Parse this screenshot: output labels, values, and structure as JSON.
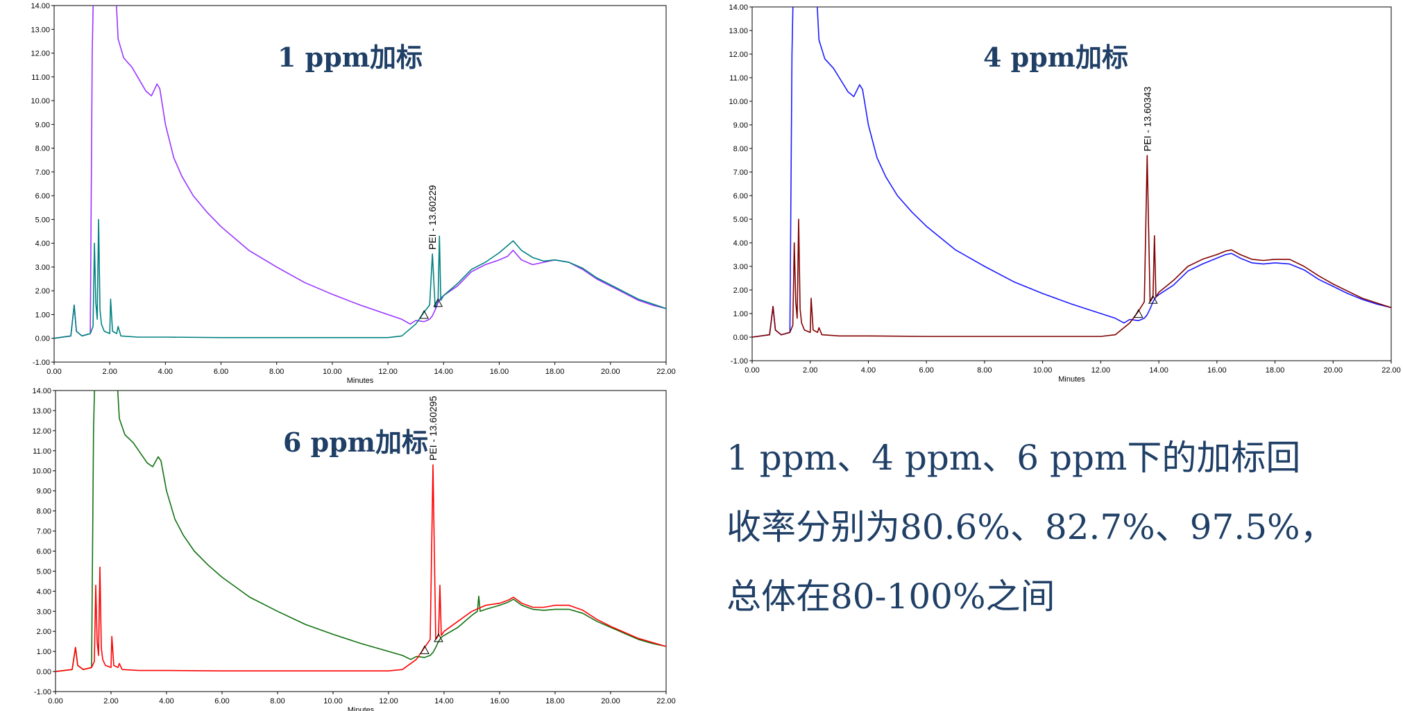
{
  "chart_data": [
    {
      "type": "line",
      "title": "1 ppm加标",
      "xlabel": "Minutes",
      "ylabel": "",
      "xlim": [
        0,
        22
      ],
      "ylim": [
        -1,
        14
      ],
      "x_ticks": [
        "0.00",
        "2.00",
        "4.00",
        "6.00",
        "8.00",
        "10.00",
        "12.00",
        "14.00",
        "16.00",
        "18.00",
        "20.00",
        "22.00"
      ],
      "y_ticks": [
        "-1.00",
        "0.00",
        "1.00",
        "2.00",
        "3.00",
        "4.00",
        "5.00",
        "6.00",
        "7.00",
        "8.00",
        "9.00",
        "10.00",
        "11.00",
        "12.00",
        "13.00",
        "14.00"
      ],
      "grid": false,
      "peak_label": "PEI - 13.60229",
      "series": [
        {
          "color": "#9933ff",
          "x": [
            0,
            0.6,
            0.72,
            0.8,
            1.0,
            1.3,
            1.37,
            1.42,
            2.2,
            2.3,
            2.35,
            2.4,
            2.5,
            2.8,
            3.0,
            3.3,
            3.5,
            3.7,
            3.8,
            4.0,
            4.3,
            4.6,
            5.0,
            5.5,
            6.0,
            7.0,
            8.0,
            9.0,
            10.0,
            11.0,
            12.0,
            12.5,
            12.8,
            13.0,
            13.3,
            13.5,
            13.6,
            13.7,
            13.8,
            13.85,
            13.9,
            14.0,
            14.5,
            15.0,
            15.5,
            16.0,
            16.3,
            16.5,
            16.8,
            17.2,
            17.6,
            18.0,
            18.5,
            19.0,
            19.5,
            20.0,
            20.5,
            21.0,
            21.5,
            22.0
          ],
          "y": [
            0.0,
            0.1,
            1.4,
            0.3,
            0.1,
            0.2,
            12,
            15,
            15,
            12.6,
            12.4,
            12.2,
            11.8,
            11.4,
            11.0,
            10.4,
            10.2,
            10.7,
            10.5,
            9.0,
            7.6,
            6.8,
            6.0,
            5.3,
            4.7,
            3.7,
            3.0,
            2.35,
            1.85,
            1.4,
            1.0,
            0.8,
            0.6,
            0.75,
            0.7,
            0.8,
            0.95,
            1.2,
            1.5,
            1.6,
            1.7,
            1.8,
            2.2,
            2.8,
            3.1,
            3.3,
            3.45,
            3.7,
            3.3,
            3.1,
            3.2,
            3.3,
            3.2,
            2.9,
            2.5,
            2.2,
            1.9,
            1.6,
            1.4,
            1.25
          ]
        },
        {
          "color": "#008080",
          "x": [
            0,
            0.6,
            0.72,
            0.8,
            1.0,
            1.3,
            1.4,
            1.45,
            1.5,
            1.55,
            1.6,
            1.65,
            1.7,
            1.8,
            2.0,
            2.03,
            2.1,
            2.25,
            2.3,
            2.4,
            3,
            4,
            6,
            8,
            10,
            12,
            12.5,
            13.0,
            13.3,
            13.5,
            13.6,
            13.7,
            13.8,
            13.85,
            13.9,
            14.0,
            14.5,
            15,
            15.5,
            16,
            16.3,
            16.5,
            16.8,
            17.2,
            17.6,
            18,
            18.5,
            19,
            19.5,
            20,
            20.5,
            21,
            21.5,
            22
          ],
          "y": [
            0,
            0.1,
            1.4,
            0.3,
            0.1,
            0.2,
            0.5,
            4.0,
            1.5,
            0.8,
            5.0,
            1.2,
            0.6,
            0.3,
            0.2,
            1.65,
            0.3,
            0.2,
            0.5,
            0.1,
            0.05,
            0.05,
            0.03,
            0.03,
            0.03,
            0.03,
            0.1,
            0.6,
            1.1,
            1.4,
            3.55,
            1.3,
            1.6,
            4.3,
            1.6,
            1.8,
            2.3,
            2.9,
            3.2,
            3.6,
            3.9,
            4.1,
            3.7,
            3.4,
            3.25,
            3.3,
            3.2,
            2.95,
            2.55,
            2.25,
            1.95,
            1.65,
            1.45,
            1.25
          ]
        }
      ]
    },
    {
      "type": "line",
      "title": "4 ppm加标",
      "xlabel": "Minutes",
      "ylabel": "",
      "xlim": [
        0,
        22
      ],
      "ylim": [
        -1,
        14
      ],
      "x_ticks": [
        "0.00",
        "2.00",
        "4.00",
        "6.00",
        "8.00",
        "10.00",
        "12.00",
        "14.00",
        "16.00",
        "18.00",
        "20.00",
        "22.00"
      ],
      "y_ticks": [
        "-1.00",
        "0.00",
        "1.00",
        "2.00",
        "3.00",
        "4.00",
        "5.00",
        "6.00",
        "7.00",
        "8.00",
        "9.00",
        "10.00",
        "11.00",
        "12.00",
        "13.00",
        "14.00"
      ],
      "grid": false,
      "peak_label": "PEI - 13.60343",
      "series": [
        {
          "color": "#1a1aff",
          "x": [
            0,
            0.6,
            0.72,
            0.8,
            1.0,
            1.3,
            1.37,
            1.42,
            2.2,
            2.3,
            2.35,
            2.4,
            2.5,
            2.8,
            3.0,
            3.3,
            3.5,
            3.7,
            3.8,
            4.0,
            4.3,
            4.6,
            5.0,
            5.5,
            6.0,
            7.0,
            8.0,
            9.0,
            10.0,
            11.0,
            12.0,
            12.5,
            12.8,
            13.0,
            13.3,
            13.5,
            13.6,
            13.7,
            13.8,
            13.85,
            13.9,
            14.0,
            14.5,
            15.0,
            15.5,
            16.0,
            16.3,
            16.5,
            16.8,
            17.2,
            17.6,
            18.0,
            18.5,
            19.0,
            19.5,
            20.0,
            20.5,
            21.0,
            21.5,
            22.0
          ],
          "y": [
            0,
            0.1,
            1.3,
            0.3,
            0.1,
            0.2,
            12,
            15,
            15,
            12.6,
            12.4,
            12.2,
            11.8,
            11.4,
            11.0,
            10.4,
            10.2,
            10.7,
            10.5,
            9.0,
            7.6,
            6.8,
            6.0,
            5.3,
            4.7,
            3.7,
            3.0,
            2.35,
            1.85,
            1.4,
            1.0,
            0.8,
            0.6,
            0.75,
            0.7,
            0.8,
            0.95,
            1.2,
            1.5,
            1.6,
            1.7,
            1.8,
            2.2,
            2.8,
            3.1,
            3.35,
            3.5,
            3.55,
            3.35,
            3.15,
            3.1,
            3.15,
            3.1,
            2.85,
            2.45,
            2.15,
            1.85,
            1.6,
            1.4,
            1.25
          ]
        },
        {
          "color": "#800000",
          "x": [
            0,
            0.6,
            0.72,
            0.8,
            1.0,
            1.3,
            1.4,
            1.45,
            1.5,
            1.55,
            1.6,
            1.65,
            1.7,
            1.8,
            2.0,
            2.03,
            2.1,
            2.25,
            2.3,
            2.4,
            3,
            4,
            6,
            8,
            10,
            12,
            12.5,
            13.0,
            13.3,
            13.5,
            13.6,
            13.7,
            13.8,
            13.85,
            13.9,
            14.0,
            14.5,
            15,
            15.5,
            16,
            16.3,
            16.5,
            16.8,
            17.2,
            17.6,
            18,
            18.5,
            19,
            19.5,
            20,
            20.5,
            21,
            21.5,
            22
          ],
          "y": [
            0,
            0.1,
            1.3,
            0.3,
            0.1,
            0.2,
            0.5,
            4.0,
            1.5,
            0.8,
            5.0,
            1.2,
            0.6,
            0.3,
            0.2,
            1.65,
            0.3,
            0.2,
            0.4,
            0.1,
            0.05,
            0.05,
            0.03,
            0.03,
            0.03,
            0.03,
            0.1,
            0.6,
            1.1,
            1.5,
            7.7,
            1.5,
            1.7,
            4.3,
            1.7,
            1.9,
            2.4,
            3.0,
            3.3,
            3.5,
            3.65,
            3.7,
            3.5,
            3.3,
            3.25,
            3.3,
            3.3,
            3.0,
            2.6,
            2.25,
            1.95,
            1.65,
            1.45,
            1.25
          ]
        }
      ]
    },
    {
      "type": "line",
      "title": "6 ppm加标",
      "xlabel": "Minutes",
      "ylabel": "",
      "xlim": [
        0,
        22
      ],
      "ylim": [
        -1,
        14
      ],
      "x_ticks": [
        "0.00",
        "2.00",
        "4.00",
        "6.00",
        "8.00",
        "10.00",
        "12.00",
        "14.00",
        "16.00",
        "18.00",
        "20.00",
        "22.00"
      ],
      "y_ticks": [
        "-1.00",
        "0.00",
        "1.00",
        "2.00",
        "3.00",
        "4.00",
        "5.00",
        "6.00",
        "7.00",
        "8.00",
        "9.00",
        "10.00",
        "11.00",
        "12.00",
        "13.00",
        "14.00"
      ],
      "grid": false,
      "peak_label": "PEI - 13.60295",
      "series": [
        {
          "color": "#107010",
          "x": [
            0,
            0.6,
            0.72,
            0.8,
            1.0,
            1.3,
            1.37,
            1.42,
            2.2,
            2.3,
            2.35,
            2.4,
            2.5,
            2.8,
            3.0,
            3.3,
            3.5,
            3.7,
            3.8,
            4.0,
            4.3,
            4.6,
            5.0,
            5.5,
            6.0,
            7.0,
            8.0,
            9.0,
            10.0,
            11.0,
            12.0,
            12.5,
            12.8,
            13.0,
            13.3,
            13.5,
            13.6,
            13.7,
            13.8,
            13.85,
            13.9,
            14.0,
            14.5,
            15.0,
            15.2,
            15.25,
            15.3,
            15.5,
            16.0,
            16.3,
            16.5,
            16.8,
            17.2,
            17.6,
            18.0,
            18.5,
            19.0,
            19.5,
            20.0,
            20.5,
            21.0,
            21.5,
            22.0
          ],
          "y": [
            0,
            0.1,
            1.2,
            0.3,
            0.1,
            0.2,
            12,
            15,
            15,
            12.6,
            12.4,
            12.2,
            11.8,
            11.4,
            11.0,
            10.4,
            10.2,
            10.7,
            10.5,
            9.0,
            7.6,
            6.8,
            6.0,
            5.3,
            4.7,
            3.7,
            3.0,
            2.35,
            1.85,
            1.4,
            1.0,
            0.8,
            0.6,
            0.75,
            0.7,
            0.8,
            0.95,
            1.2,
            1.5,
            1.6,
            1.7,
            1.8,
            2.2,
            2.8,
            3.0,
            3.75,
            3.0,
            3.1,
            3.3,
            3.45,
            3.6,
            3.3,
            3.1,
            3.05,
            3.1,
            3.1,
            2.9,
            2.5,
            2.2,
            1.9,
            1.6,
            1.4,
            1.25
          ]
        },
        {
          "color": "#ff0000",
          "x": [
            0,
            0.6,
            0.72,
            0.8,
            1.0,
            1.3,
            1.4,
            1.45,
            1.5,
            1.55,
            1.6,
            1.65,
            1.7,
            1.8,
            2.0,
            2.03,
            2.1,
            2.25,
            2.3,
            2.4,
            3,
            4,
            6,
            8,
            10,
            12,
            12.5,
            13.0,
            13.3,
            13.5,
            13.6,
            13.7,
            13.8,
            13.85,
            13.9,
            14.0,
            14.5,
            15,
            15.5,
            16,
            16.3,
            16.5,
            16.8,
            17.2,
            17.6,
            18,
            18.5,
            19,
            19.5,
            20,
            20.5,
            21,
            21.5,
            22
          ],
          "y": [
            0,
            0.1,
            1.2,
            0.3,
            0.1,
            0.2,
            0.5,
            4.3,
            1.5,
            0.8,
            5.2,
            1.2,
            0.6,
            0.3,
            0.2,
            1.75,
            0.3,
            0.2,
            0.4,
            0.1,
            0.05,
            0.05,
            0.03,
            0.03,
            0.03,
            0.03,
            0.1,
            0.6,
            1.2,
            1.6,
            10.3,
            1.6,
            1.8,
            4.3,
            1.8,
            2.0,
            2.5,
            3.0,
            3.3,
            3.4,
            3.55,
            3.7,
            3.4,
            3.2,
            3.2,
            3.3,
            3.3,
            3.05,
            2.6,
            2.25,
            1.95,
            1.65,
            1.45,
            1.25
          ]
        }
      ]
    }
  ],
  "summary": {
    "line1": "1 ppm、4 ppm、6 ppm下的加标回",
    "line2": "收率分别为80.6%、82.7%、97.5%，",
    "line3": "总体在80-100%之间"
  }
}
